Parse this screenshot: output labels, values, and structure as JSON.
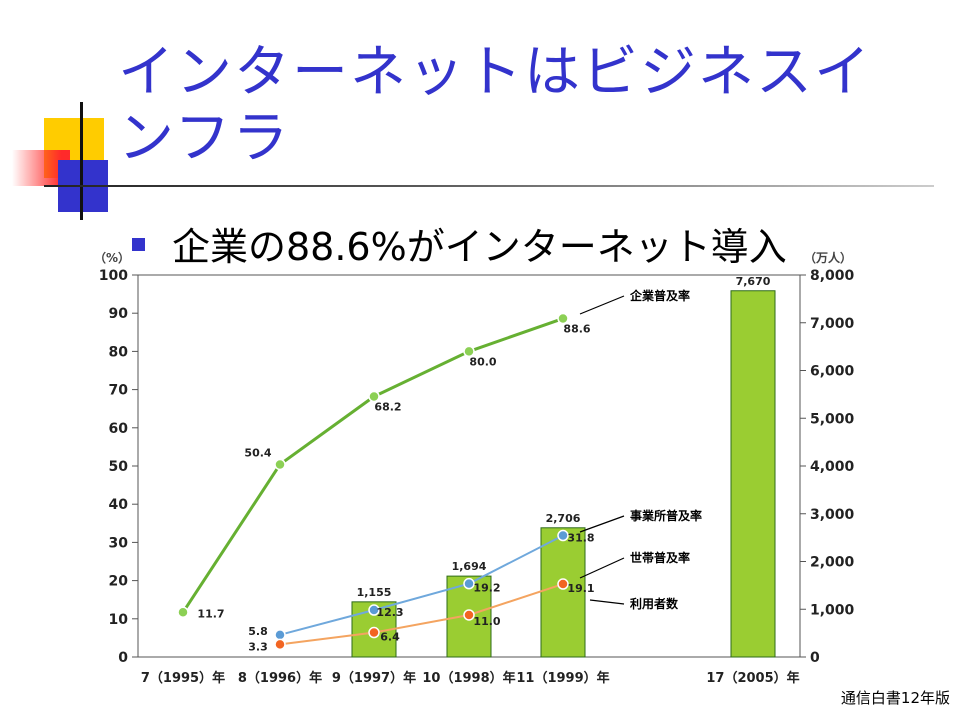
{
  "slide": {
    "title": "インターネットはビジネスインフラ",
    "bullet": "企業の88.6%がインターネット導入",
    "source": "通信白書12年版"
  },
  "colors": {
    "title": "#3333cc",
    "enterprise_line": "#66b032",
    "office_line": "#6fa8dc",
    "household_line": "#f4a460",
    "bar": "#9acd32"
  },
  "chart_data": {
    "type": "bar+line",
    "categories": [
      "7（1995）年",
      "8（1996）年",
      "9（1997）年",
      "10（1998）年",
      "11（1999）年",
      "17（2005）年"
    ],
    "ylabel_left": "（%）",
    "ylabel_right": "（万人）",
    "ylim_left": [
      0,
      100
    ],
    "ylim_right": [
      0,
      8000
    ],
    "left_ticks": [
      0,
      10,
      20,
      30,
      40,
      50,
      60,
      70,
      80,
      90,
      100
    ],
    "right_ticks": [
      "0",
      "1,000",
      "2,000",
      "3,000",
      "4,000",
      "5,000",
      "6,000",
      "7,000",
      "8,000"
    ],
    "bars": {
      "name": "利用者数",
      "axis": "right",
      "values": [
        null,
        null,
        1155,
        1694,
        2706,
        7670
      ],
      "labels": [
        "",
        "",
        "1,155",
        "1,694",
        "2,706",
        "7,670"
      ]
    },
    "series": [
      {
        "name": "企業普及率",
        "axis": "left",
        "values": [
          11.7,
          50.4,
          68.2,
          80.0,
          88.6,
          null
        ],
        "labels": [
          "11.7",
          "50.4",
          "68.2",
          "80.0",
          "88.6",
          ""
        ]
      },
      {
        "name": "事業所普及率",
        "axis": "left",
        "values": [
          null,
          5.8,
          12.3,
          19.2,
          31.8,
          null
        ],
        "labels": [
          "",
          "5.8",
          "12.3",
          "19.2",
          "31.8",
          ""
        ]
      },
      {
        "name": "世帯普及率",
        "axis": "left",
        "values": [
          null,
          3.3,
          6.4,
          11.0,
          19.1,
          null
        ],
        "labels": [
          "",
          "3.3",
          "6.4",
          "11.0",
          "19.1",
          ""
        ]
      }
    ],
    "legend_callouts": [
      "企業普及率",
      "事業所普及率",
      "世帯普及率",
      "利用者数"
    ],
    "grid": false
  }
}
